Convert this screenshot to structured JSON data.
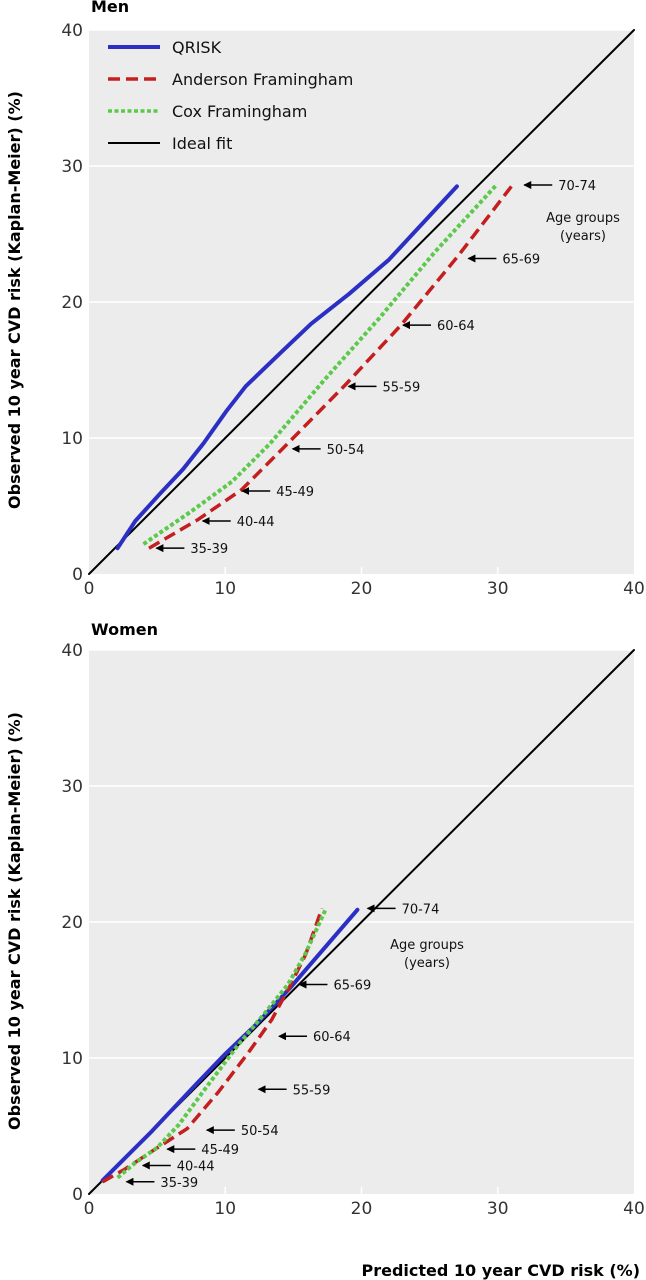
{
  "figure": {
    "ylabel": "Observed 10 year CVD risk (Kaplan-Meier) (%)",
    "xlabel": "Predicted 10 year CVD risk (%)"
  },
  "legend": [
    {
      "label": "QRISK",
      "color": "#2b2fc4",
      "style": "solid"
    },
    {
      "label": "Anderson Framingham",
      "color": "#c41e1e",
      "style": "dashed"
    },
    {
      "label": "Cox Framingham",
      "color": "#5cc94a",
      "style": "dotted"
    },
    {
      "label": "Ideal fit",
      "color": "#000000",
      "style": "solid"
    }
  ],
  "chart_data": [
    {
      "type": "line",
      "title": "Men",
      "xlim": [
        0,
        40
      ],
      "ylim": [
        0,
        40
      ],
      "xticks": [
        0,
        10,
        20,
        30,
        40
      ],
      "yticks": [
        0,
        10,
        20,
        30,
        40
      ],
      "grid": true,
      "legend_position": "top-left",
      "note": [
        "Age groups",
        "(years)"
      ],
      "series": [
        {
          "name": "QRISK",
          "color": "#2b2fc4",
          "style": "solid",
          "points": [
            [
              2.1,
              1.9
            ],
            [
              3.4,
              3.9
            ],
            [
              5.2,
              5.9
            ],
            [
              6.9,
              7.7
            ],
            [
              8.4,
              9.6
            ],
            [
              10.1,
              12.0
            ],
            [
              11.5,
              13.8
            ],
            [
              14.1,
              16.3
            ],
            [
              16.3,
              18.4
            ],
            [
              19.1,
              20.6
            ],
            [
              22.0,
              23.1
            ],
            [
              27.0,
              28.5
            ]
          ]
        },
        {
          "name": "Anderson Framingham",
          "color": "#c41e1e",
          "style": "dashed",
          "points": [
            [
              4.4,
              1.9
            ],
            [
              8.0,
              4.0
            ],
            [
              11.2,
              6.2
            ],
            [
              14.3,
              9.3
            ],
            [
              18.8,
              13.9
            ],
            [
              22.9,
              18.3
            ],
            [
              27.1,
              23.4
            ],
            [
              31.0,
              28.5
            ]
          ]
        },
        {
          "name": "Cox Framingham",
          "color": "#5cc94a",
          "style": "dotted",
          "points": [
            [
              4.0,
              2.2
            ],
            [
              7.5,
              4.6
            ],
            [
              10.5,
              6.8
            ],
            [
              13.3,
              9.6
            ],
            [
              17.3,
              14.3
            ],
            [
              21.3,
              18.8
            ],
            [
              25.4,
              23.7
            ],
            [
              29.9,
              28.6
            ]
          ]
        },
        {
          "name": "Ideal fit",
          "color": "#000000",
          "style": "solid",
          "points": [
            [
              0,
              0
            ],
            [
              40,
              40
            ]
          ]
        }
      ],
      "age_labels": [
        {
          "label": "35-39",
          "x": 4.8,
          "y": 1.9
        },
        {
          "label": "40-44",
          "x": 8.2,
          "y": 3.9
        },
        {
          "label": "45-49",
          "x": 11.1,
          "y": 6.1
        },
        {
          "label": "50-54",
          "x": 14.8,
          "y": 9.2
        },
        {
          "label": "55-59",
          "x": 18.9,
          "y": 13.8
        },
        {
          "label": "60-64",
          "x": 22.9,
          "y": 18.3
        },
        {
          "label": "65-69",
          "x": 27.7,
          "y": 23.2
        },
        {
          "label": "70-74",
          "x": 31.8,
          "y": 28.6
        }
      ]
    },
    {
      "type": "line",
      "title": "Women",
      "xlim": [
        0,
        40
      ],
      "ylim": [
        0,
        40
      ],
      "xticks": [
        0,
        10,
        20,
        30,
        40
      ],
      "yticks": [
        0,
        10,
        20,
        30,
        40
      ],
      "grid": true,
      "note": [
        "Age groups",
        "(years)"
      ],
      "series": [
        {
          "name": "QRISK",
          "color": "#2b2fc4",
          "style": "solid",
          "points": [
            [
              1.0,
              1.0
            ],
            [
              2.1,
              2.1
            ],
            [
              3.3,
              3.3
            ],
            [
              4.6,
              4.6
            ],
            [
              6.2,
              6.3
            ],
            [
              7.9,
              8.1
            ],
            [
              10.0,
              10.3
            ],
            [
              12.3,
              12.5
            ],
            [
              14.8,
              15.2
            ],
            [
              19.7,
              20.9
            ]
          ]
        },
        {
          "name": "Anderson Framingham",
          "color": "#c41e1e",
          "style": "dashed",
          "points": [
            [
              1.0,
              0.9
            ],
            [
              2.6,
              1.8
            ],
            [
              4.4,
              3.0
            ],
            [
              7.2,
              4.8
            ],
            [
              9.5,
              7.5
            ],
            [
              11.7,
              10.4
            ],
            [
              13.4,
              12.8
            ],
            [
              14.7,
              15.2
            ],
            [
              15.9,
              17.6
            ],
            [
              17.1,
              21.0
            ]
          ]
        },
        {
          "name": "Cox Framingham",
          "color": "#5cc94a",
          "style": "dotted",
          "points": [
            [
              2.1,
              1.2
            ],
            [
              3.4,
              2.3
            ],
            [
              5.0,
              3.4
            ],
            [
              6.6,
              5.1
            ],
            [
              8.8,
              8.1
            ],
            [
              10.9,
              10.9
            ],
            [
              12.9,
              13.3
            ],
            [
              14.6,
              15.4
            ],
            [
              15.9,
              17.7
            ],
            [
              17.4,
              21.0
            ]
          ]
        },
        {
          "name": "Ideal fit",
          "color": "#000000",
          "style": "solid",
          "points": [
            [
              0,
              0
            ],
            [
              40,
              40
            ]
          ]
        }
      ],
      "age_labels": [
        {
          "label": "35-39",
          "x": 2.6,
          "y": 0.9
        },
        {
          "label": "40-44",
          "x": 3.8,
          "y": 2.1
        },
        {
          "label": "45-49",
          "x": 5.6,
          "y": 3.3
        },
        {
          "label": "50-54",
          "x": 8.5,
          "y": 4.7
        },
        {
          "label": "55-59",
          "x": 12.3,
          "y": 7.7
        },
        {
          "label": "60-64",
          "x": 13.8,
          "y": 11.6
        },
        {
          "label": "65-69",
          "x": 15.3,
          "y": 15.4
        },
        {
          "label": "70-74",
          "x": 20.3,
          "y": 21.0
        }
      ]
    }
  ]
}
